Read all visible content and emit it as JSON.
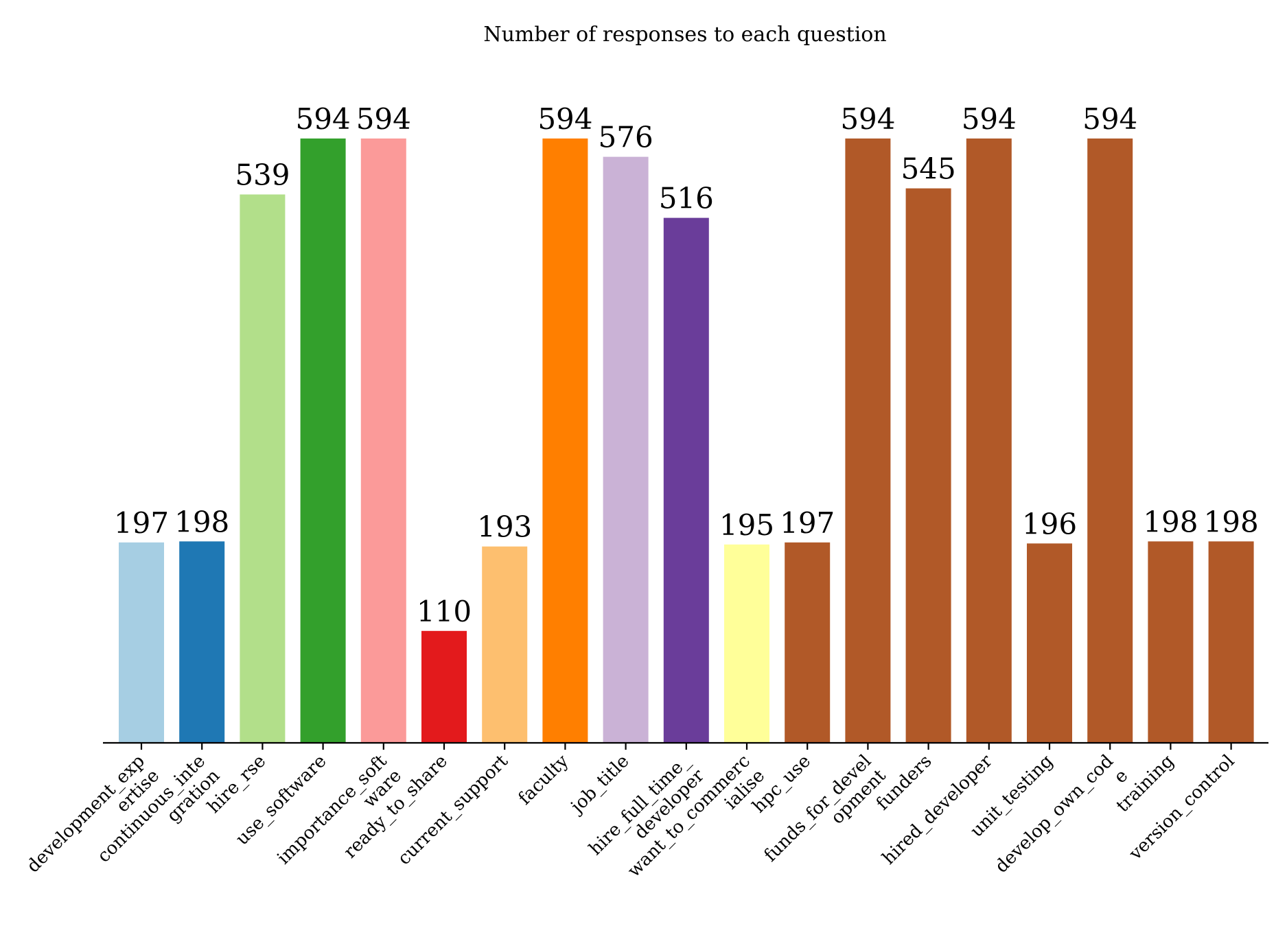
{
  "chart_data": {
    "type": "bar",
    "title": "Number of responses to each question",
    "xlabel": "",
    "ylabel": "",
    "ylim": [
      0,
      640
    ],
    "grid": false,
    "categories": [
      [
        "development_exp",
        "ertise"
      ],
      [
        "continuous_inte",
        "gration"
      ],
      [
        "hire_rse"
      ],
      [
        "use_software"
      ],
      [
        "importance_soft",
        "ware"
      ],
      [
        "ready_to_share"
      ],
      [
        "current_support"
      ],
      [
        "faculty"
      ],
      [
        "job_title"
      ],
      [
        "hire_full_time_",
        "developer"
      ],
      [
        "want_to_commerc",
        "ialise"
      ],
      [
        "hpc_use"
      ],
      [
        "funds_for_devel",
        "opment"
      ],
      [
        "funders"
      ],
      [
        "hired_developer"
      ],
      [
        "unit_testing"
      ],
      [
        "develop_own_cod",
        "e"
      ],
      [
        "training"
      ],
      [
        "version_control"
      ]
    ],
    "values": [
      197,
      198,
      539,
      594,
      594,
      110,
      193,
      594,
      576,
      516,
      195,
      197,
      594,
      545,
      594,
      196,
      594,
      198,
      198
    ],
    "colors": [
      "#a6cee3",
      "#1f78b4",
      "#b2df8a",
      "#33a02c",
      "#fb9a99",
      "#e31a1c",
      "#fdbf6f",
      "#ff7f00",
      "#cab2d6",
      "#6a3d9a",
      "#ffff99",
      "#b15928",
      "#b15928",
      "#b15928",
      "#b15928",
      "#b15928",
      "#b15928",
      "#b15928",
      "#b15928"
    ]
  }
}
